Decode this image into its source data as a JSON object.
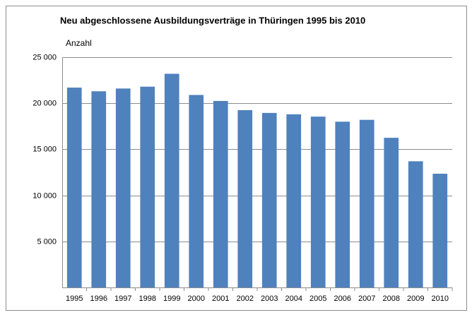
{
  "chart_data": {
    "type": "bar",
    "title": "Neu abgeschlossene Ausbildungsverträge in Thüringen 1995 bis 2010",
    "y_label": "Anzahl",
    "categories": [
      "1995",
      "1996",
      "1997",
      "1998",
      "1999",
      "2000",
      "2001",
      "2002",
      "2003",
      "2004",
      "2005",
      "2006",
      "2007",
      "2008",
      "2009",
      "2010"
    ],
    "values": [
      21700,
      21300,
      21600,
      21800,
      23200,
      20900,
      20250,
      19250,
      18950,
      18800,
      18550,
      18000,
      18200,
      16250,
      13700,
      12350
    ],
    "color": "#4f81bd",
    "ylim": [
      0,
      25000
    ],
    "yticks": [
      {
        "value": 5000,
        "label": "5 000"
      },
      {
        "value": 10000,
        "label": "10 000"
      },
      {
        "value": 15000,
        "label": "15 000"
      },
      {
        "value": 20000,
        "label": "20 000"
      },
      {
        "value": 25000,
        "label": "25 000"
      }
    ],
    "grid": true
  }
}
